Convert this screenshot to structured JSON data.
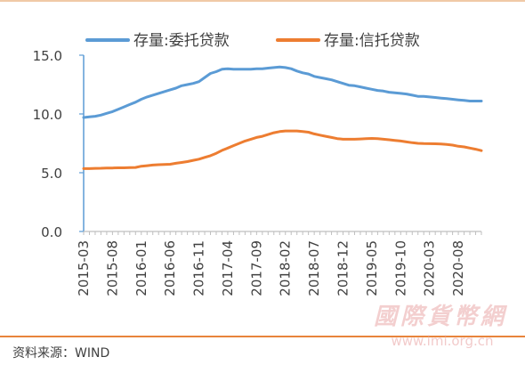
{
  "source_text": "资料来源：WIND",
  "watermark": {
    "title": "國際貨幣網",
    "url": "www.imi.org.cn"
  },
  "colors": {
    "series_entrusted": "#5b9bd5",
    "series_trust": "#ed7d31",
    "axis": "#5b9bd5",
    "rule_bottom": "#e8843c",
    "rule_top": "#f0c9a6"
  },
  "chart_data": {
    "type": "line",
    "title": "",
    "xlabel": "",
    "ylabel": "",
    "ylim": [
      0,
      15
    ],
    "yticks": [
      "15.0",
      "10.0",
      "5.0",
      "0.0"
    ],
    "xtick_labels": [
      "2015-03",
      "2015-08",
      "2016-01",
      "2016-06",
      "2016-11",
      "2017-04",
      "2017-09",
      "2018-02",
      "2018-07",
      "2018-12",
      "2019-05",
      "2019-10",
      "2020-03",
      "2020-08"
    ],
    "legend_position": "top",
    "grid": false,
    "x": [
      "2015-03",
      "2015-04",
      "2015-05",
      "2015-06",
      "2015-07",
      "2015-08",
      "2015-09",
      "2015-10",
      "2015-11",
      "2015-12",
      "2016-01",
      "2016-02",
      "2016-03",
      "2016-04",
      "2016-05",
      "2016-06",
      "2016-07",
      "2016-08",
      "2016-09",
      "2016-10",
      "2016-11",
      "2016-12",
      "2017-01",
      "2017-02",
      "2017-03",
      "2017-04",
      "2017-05",
      "2017-06",
      "2017-07",
      "2017-08",
      "2017-09",
      "2017-10",
      "2017-11",
      "2017-12",
      "2018-01",
      "2018-02",
      "2018-03",
      "2018-04",
      "2018-05",
      "2018-06",
      "2018-07",
      "2018-08",
      "2018-09",
      "2018-10",
      "2018-11",
      "2018-12",
      "2019-01",
      "2019-02",
      "2019-03",
      "2019-04",
      "2019-05",
      "2019-06",
      "2019-07",
      "2019-08",
      "2019-09",
      "2019-10",
      "2019-11",
      "2019-12",
      "2020-01",
      "2020-02",
      "2020-03",
      "2020-04",
      "2020-05",
      "2020-06",
      "2020-07",
      "2020-08",
      "2020-09",
      "2020-10",
      "2020-11",
      "2020-12"
    ],
    "series": [
      {
        "name": "存量:委托贷款",
        "values": [
          9.7,
          9.75,
          9.8,
          9.9,
          10.05,
          10.2,
          10.4,
          10.6,
          10.8,
          11.0,
          11.25,
          11.45,
          11.6,
          11.75,
          11.9,
          12.05,
          12.2,
          12.4,
          12.5,
          12.6,
          12.75,
          13.1,
          13.45,
          13.6,
          13.8,
          13.85,
          13.8,
          13.8,
          13.8,
          13.8,
          13.85,
          13.85,
          13.9,
          13.95,
          14.0,
          13.95,
          13.85,
          13.65,
          13.5,
          13.4,
          13.2,
          13.1,
          13.0,
          12.9,
          12.75,
          12.6,
          12.45,
          12.4,
          12.3,
          12.2,
          12.1,
          12.0,
          11.95,
          11.85,
          11.8,
          11.75,
          11.7,
          11.6,
          11.5,
          11.5,
          11.45,
          11.4,
          11.35,
          11.3,
          11.25,
          11.2,
          11.15,
          11.1,
          11.1,
          11.1
        ]
      },
      {
        "name": "存量:信托贷款",
        "values": [
          5.35,
          5.35,
          5.37,
          5.38,
          5.4,
          5.4,
          5.42,
          5.42,
          5.43,
          5.45,
          5.55,
          5.6,
          5.65,
          5.68,
          5.7,
          5.72,
          5.8,
          5.87,
          5.95,
          6.05,
          6.15,
          6.3,
          6.45,
          6.65,
          6.9,
          7.1,
          7.3,
          7.5,
          7.7,
          7.85,
          8.0,
          8.1,
          8.25,
          8.4,
          8.5,
          8.55,
          8.55,
          8.55,
          8.5,
          8.45,
          8.3,
          8.2,
          8.1,
          8.0,
          7.9,
          7.85,
          7.85,
          7.85,
          7.87,
          7.9,
          7.92,
          7.9,
          7.85,
          7.8,
          7.75,
          7.7,
          7.62,
          7.55,
          7.5,
          7.48,
          7.47,
          7.46,
          7.45,
          7.4,
          7.35,
          7.25,
          7.2,
          7.1,
          7.0,
          6.88
        ]
      }
    ]
  }
}
